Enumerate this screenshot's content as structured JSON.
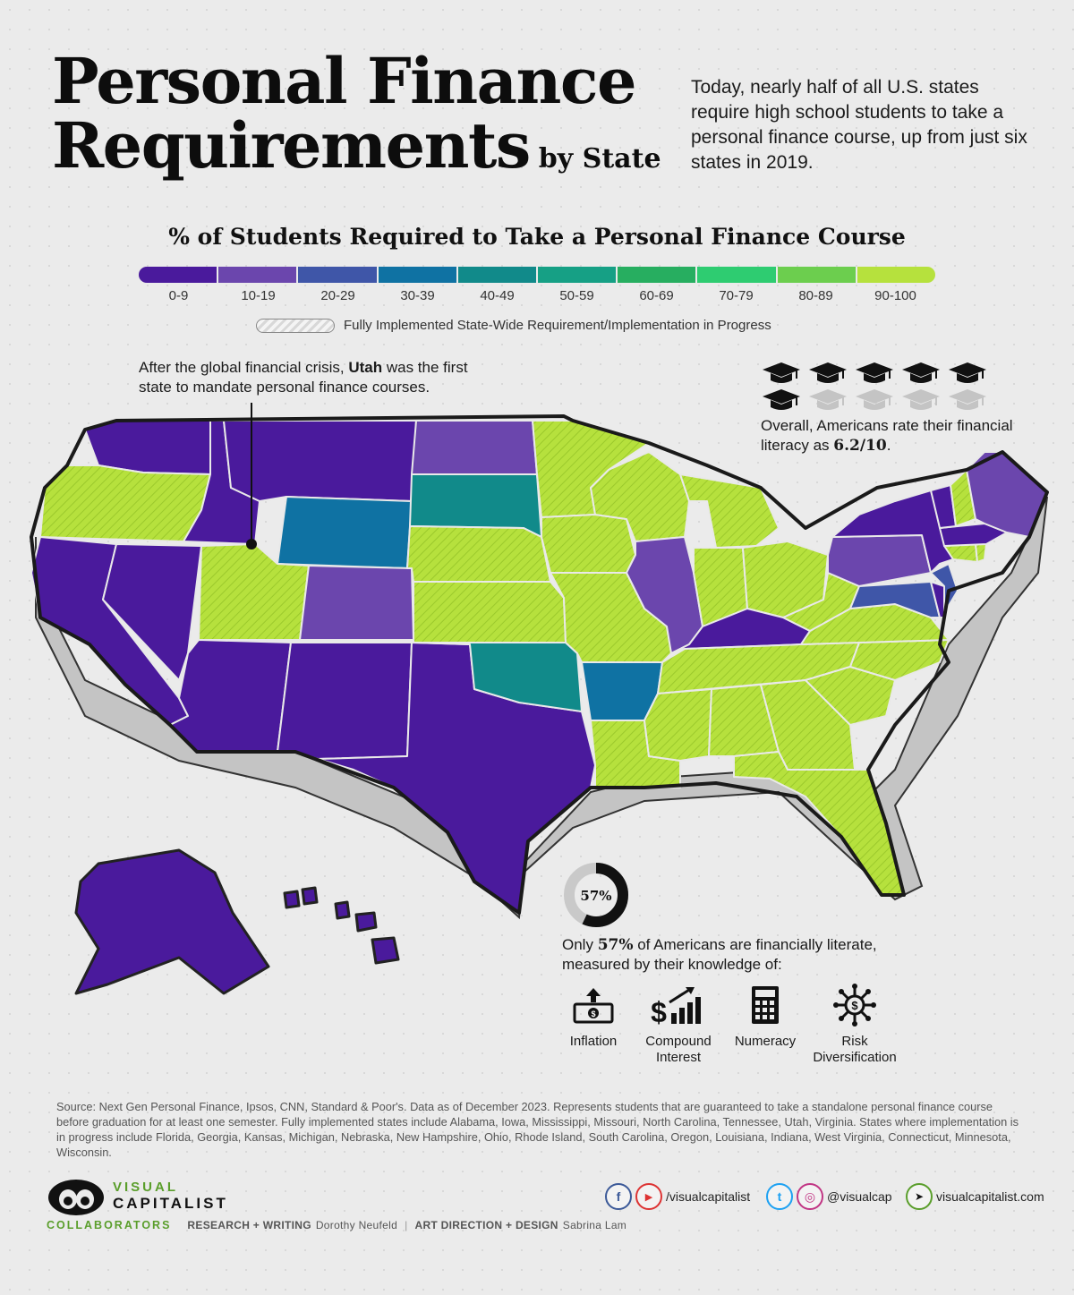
{
  "header": {
    "title_line1": "Personal Finance",
    "title_line2": "Requirements",
    "title_by": "by State",
    "intro": "Today, nearly half of all U.S. states require high school students to take a personal finance course, up from just six states in 2019."
  },
  "legend": {
    "title": "% of Students Required to Take a Personal Finance Course",
    "bins": [
      {
        "label": "0-9",
        "color": "#4a1a9c"
      },
      {
        "label": "10-19",
        "color": "#6b46ad"
      },
      {
        "label": "20-29",
        "color": "#3f56a8"
      },
      {
        "label": "30-39",
        "color": "#0f72a3"
      },
      {
        "label": "40-49",
        "color": "#118a8a"
      },
      {
        "label": "50-59",
        "color": "#16a085"
      },
      {
        "label": "60-69",
        "color": "#27ae60"
      },
      {
        "label": "70-79",
        "color": "#2ecc71"
      },
      {
        "label": "80-89",
        "color": "#6cce4e"
      },
      {
        "label": "90-100",
        "color": "#b6e13d"
      }
    ],
    "hatch_label": "Fully Implemented State-Wide Requirement/Implementation in Progress"
  },
  "annotations": {
    "utah_pre": "After the global financial crisis, ",
    "utah_bold": "Utah",
    "utah_post": " was the first state to mandate personal finance courses.",
    "rating_pre": "Overall, Americans rate their financial literacy as ",
    "rating_value": "6.2/10",
    "rating_post": ".",
    "rating_score": 6.2,
    "rating_max": 10,
    "literacy_percent_label": "57%",
    "literacy_percent": 57,
    "literacy_pre": "Only ",
    "literacy_bold": "57%",
    "literacy_post": " of Americans are financially literate, measured by their knowledge of:",
    "topics": [
      {
        "label": "Inflation",
        "icon": "money-up-icon"
      },
      {
        "label": "Compound Interest",
        "icon": "dollar-growth-chart-icon"
      },
      {
        "label": "Numeracy",
        "icon": "calculator-icon"
      },
      {
        "label": "Risk Diversification",
        "icon": "dollar-network-icon"
      }
    ]
  },
  "source": "Source: Next Gen Personal Finance, Ipsos, CNN, Standard & Poor's. Data as of December 2023. Represents students that are guaranteed to take a standalone personal finance course before graduation for at least one semester. Fully implemented states include Alabama, Iowa, Mississippi, Missouri, North Carolina, Tennessee, Utah, Virginia. States where implementation is in progress include Florida, Georgia, Kansas, Michigan, Nebraska, New Hampshire, Ohio, Rhode Island, South Carolina, Oregon, Louisiana, Indiana, West Virginia, Connecticut, Minnesota, Wisconsin.",
  "map_states": {
    "bin_0_9": [
      "Washington",
      "Idaho",
      "Montana",
      "California",
      "Nevada",
      "Arizona",
      "New Mexico",
      "Texas",
      "Kentucky",
      "New York",
      "Vermont",
      "Massachusetts",
      "Alaska",
      "Hawaii",
      "Delaware"
    ],
    "bin_10_19": [
      "North Dakota",
      "Colorado",
      "Illinois",
      "Pennsylvania",
      "Maine"
    ],
    "bin_20_29": [
      "Maryland",
      "New Jersey"
    ],
    "bin_30_39": [
      "Wyoming",
      "Arkansas"
    ],
    "bin_40_49": [
      "South Dakota",
      "Oklahoma"
    ],
    "bin_50_59": [],
    "bin_60_69": [],
    "bin_70_79": [],
    "bin_80_89": [],
    "bin_90_100": [
      "Oregon",
      "Utah",
      "Nebraska",
      "Kansas",
      "Minnesota",
      "Iowa",
      "Missouri",
      "Wisconsin",
      "Michigan",
      "Indiana",
      "Ohio",
      "West Virginia",
      "Virginia",
      "North Carolina",
      "Tennessee",
      "Louisiana",
      "Mississippi",
      "Alabama",
      "Georgia",
      "South Carolina",
      "Florida",
      "New Hampshire",
      "Rhode Island",
      "Connecticut"
    ]
  },
  "brand": {
    "logo_line1": "VISUAL",
    "logo_line2": "CAPITALIST",
    "social1": "/visualcapitalist",
    "social2": "@visualcap",
    "social3": "visualcapitalist.com",
    "fb_icon": "f",
    "yt_icon": "▶",
    "tw_icon": "t",
    "ig_icon": "◎",
    "cursor_icon": "➤"
  },
  "collaborators": {
    "heading": "COLLABORATORS",
    "role1": "RESEARCH + WRITING",
    "name1": "Dorothy Neufeld",
    "role2": "ART DIRECTION + DESIGN",
    "name2": "Sabrina Lam",
    "separator": "|"
  }
}
